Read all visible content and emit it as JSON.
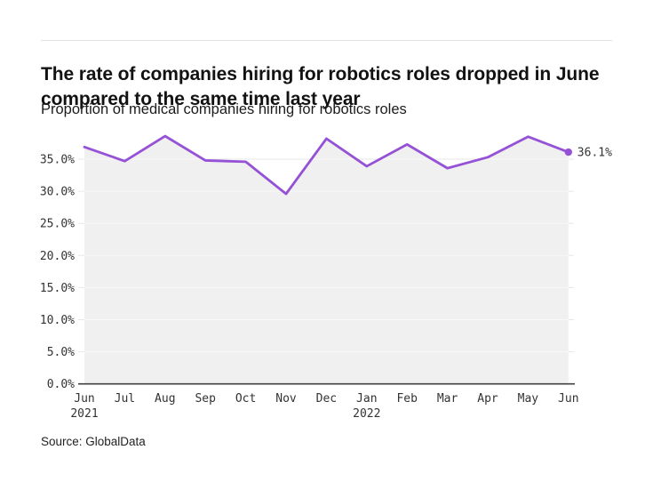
{
  "header": {
    "title": "The rate of companies hiring for robotics roles dropped in June compared to the same time last year",
    "subtitle": "Proportion of medical companies hiring for robotics roles"
  },
  "source": "Source: GlobalData",
  "chart_data": {
    "type": "line",
    "title": "Proportion of medical companies hiring for robotics roles",
    "categories": [
      "Jun",
      "Jul",
      "Aug",
      "Sep",
      "Oct",
      "Nov",
      "Dec",
      "Jan",
      "Feb",
      "Mar",
      "Apr",
      "May",
      "Jun"
    ],
    "year_labels": [
      {
        "index": 0,
        "text": "2021"
      },
      {
        "index": 7,
        "text": "2022"
      }
    ],
    "series": [
      {
        "name": "Proportion of medical companies hiring for robotics roles",
        "values": [
          36.9,
          34.7,
          38.6,
          34.8,
          34.6,
          29.6,
          38.2,
          33.9,
          37.3,
          33.6,
          35.3,
          38.5,
          36.1
        ]
      }
    ],
    "last_point_label": "36.1%",
    "yticks": [
      0,
      5,
      10,
      15,
      20,
      25,
      30,
      35
    ],
    "ytick_labels": [
      "0.0%",
      "5.0%",
      "10.0%",
      "15.0%",
      "20.0%",
      "25.0%",
      "30.0%",
      "35.0%"
    ],
    "ylim": [
      0,
      39
    ],
    "xlabel": "",
    "ylabel": "",
    "grid": true,
    "legend_position": "none",
    "colors": {
      "line": "#9552d6",
      "marker": "#9552d6",
      "area_fill": "#f0f0f0",
      "gridline_outer": "#e7e7e7",
      "gridline_on_fill": "#f8f8f8",
      "axis_line": "#404040",
      "tick_text": "#333333",
      "annotation_text": "#333333"
    }
  }
}
